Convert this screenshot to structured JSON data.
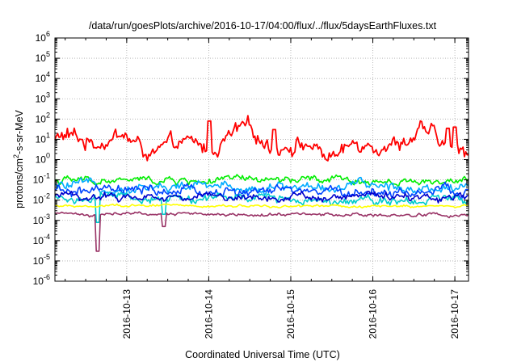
{
  "chart_data": {
    "type": "line",
    "title": "/data/run/goesPlots/archive/2016-10-17/04:00/flux/../flux/5daysEarthFluxes.txt",
    "xlabel": "Coordinated Universal Time (UTC)",
    "ylabel": "protons/cm²-s-sr-MeV",
    "ylabel_parts": {
      "pre": "protons/cm",
      "sup": "2",
      "post": "-s-sr-MeV"
    },
    "yscale": "log",
    "ylim": [
      1e-06,
      1000000.0
    ],
    "y_ticks": [
      {
        "value": 1e-06,
        "base": "10",
        "exp": "-6"
      },
      {
        "value": 1e-05,
        "base": "10",
        "exp": "-5"
      },
      {
        "value": 0.0001,
        "base": "10",
        "exp": "-4"
      },
      {
        "value": 0.001,
        "base": "10",
        "exp": "-3"
      },
      {
        "value": 0.01,
        "base": "10",
        "exp": "-2"
      },
      {
        "value": 0.1,
        "base": "10",
        "exp": "-1"
      },
      {
        "value": 1,
        "base": "10",
        "exp": "0"
      },
      {
        "value": 10,
        "base": "10",
        "exp": "1"
      },
      {
        "value": 100,
        "base": "10",
        "exp": "2"
      },
      {
        "value": 1000.0,
        "base": "10",
        "exp": "3"
      },
      {
        "value": 10000.0,
        "base": "10",
        "exp": "4"
      },
      {
        "value": 100000.0,
        "base": "10",
        "exp": "5"
      },
      {
        "value": 1000000.0,
        "base": "10",
        "exp": "6"
      }
    ],
    "xlim": [
      "2016-10-12T03:00",
      "2016-10-17T04:00"
    ],
    "x_ticks": [
      "2016-10-13",
      "2016-10-14",
      "2016-10-15",
      "2016-10-16",
      "2016-10-17"
    ],
    "grid": true,
    "series": [
      {
        "color": "#ff0000",
        "level": 6,
        "spread": 0.75,
        "spikes": [
          [
            "2016-10-14T00:00",
            80
          ],
          [
            "2016-10-14T19:00",
            30
          ],
          [
            "2016-10-16T22:00",
            35
          ],
          [
            "2016-10-17T00:00",
            40
          ]
        ]
      },
      {
        "color": "#00ee00",
        "level": 0.09,
        "spread": 0.35,
        "spikes": []
      },
      {
        "color": "#00aaff",
        "level": 0.045,
        "spread": 0.45,
        "spikes": []
      },
      {
        "color": "#0044ff",
        "level": 0.025,
        "spread": 0.45,
        "spikes": []
      },
      {
        "color": "#00cccc",
        "level": 0.012,
        "spread": 0.4,
        "spikes": [
          [
            "2016-10-12T15:30",
            0.0008
          ],
          [
            "2016-10-13T11:00",
            0.002
          ]
        ]
      },
      {
        "color": "#0000cc",
        "level": 0.015,
        "spread": 0.35,
        "spikes": []
      },
      {
        "color": "#ffff00",
        "level": 0.005,
        "spread": 0.12,
        "spikes": []
      },
      {
        "color": "#993366",
        "level": 0.002,
        "spread": 0.15,
        "spikes": [
          [
            "2016-10-12T15:30",
            3e-05
          ],
          [
            "2016-10-13T11:00",
            0.0005
          ]
        ]
      }
    ]
  }
}
